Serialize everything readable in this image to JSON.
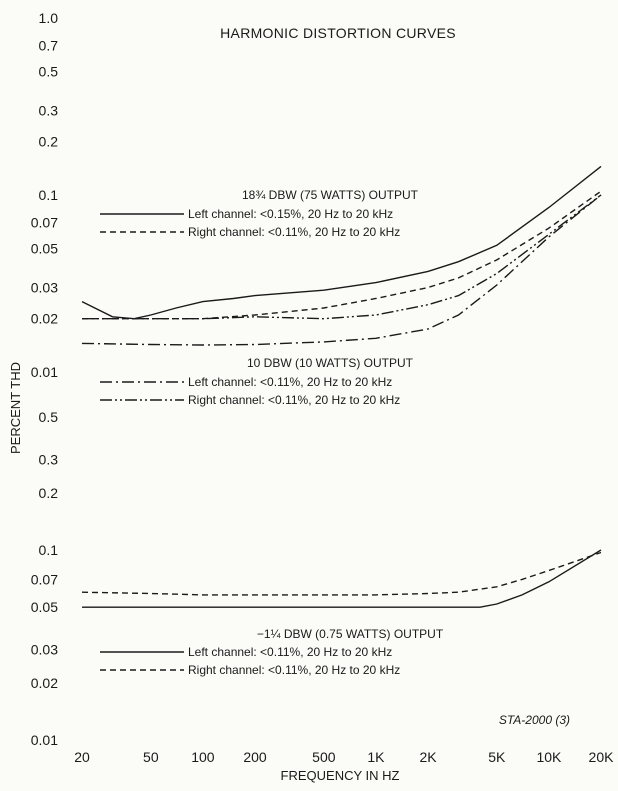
{
  "chart_data": {
    "type": "line",
    "title": "HARMONIC DISTORTION CURVES",
    "xlabel": "FREQUENCY IN HZ",
    "ylabel": "PERCENT THD",
    "xscale": "log",
    "yscale": "log",
    "x_ticks": [
      {
        "value": 20,
        "label": "20"
      },
      {
        "value": 50,
        "label": "50"
      },
      {
        "value": 100,
        "label": "100"
      },
      {
        "value": 200,
        "label": "200"
      },
      {
        "value": 500,
        "label": "500"
      },
      {
        "value": 1000,
        "label": "1K"
      },
      {
        "value": 2000,
        "label": "2K"
      },
      {
        "value": 5000,
        "label": "5K"
      },
      {
        "value": 10000,
        "label": "10K"
      },
      {
        "value": 20000,
        "label": "20K"
      }
    ],
    "xlim": [
      20,
      20000
    ],
    "footnote": "STA-2000 (3)",
    "panels": [
      {
        "ylim": [
          0.01,
          1.0
        ],
        "y_ticks": [
          {
            "value": 1.0,
            "label": "1.0"
          },
          {
            "value": 0.7,
            "label": "0.7"
          },
          {
            "value": 0.5,
            "label": "0.5"
          },
          {
            "value": 0.3,
            "label": "0.3"
          },
          {
            "value": 0.2,
            "label": "0.2"
          },
          {
            "value": 0.1,
            "label": "0.1"
          },
          {
            "value": 0.07,
            "label": "0.07"
          },
          {
            "value": 0.05,
            "label": "0.05"
          },
          {
            "value": 0.03,
            "label": "0.03"
          },
          {
            "value": 0.02,
            "label": "0.02"
          },
          {
            "value": 0.01,
            "label": "0.01"
          }
        ],
        "groups": [
          {
            "heading": "18¾ DBW (75 WATTS) OUTPUT",
            "series": [
              {
                "name": "Left channel: <0.15%, 20 Hz to 20 kHz",
                "style": "solid",
                "x": [
                  20,
                  30,
                  40,
                  50,
                  70,
                  100,
                  150,
                  200,
                  500,
                  1000,
                  2000,
                  3000,
                  5000,
                  10000,
                  20000
                ],
                "y": [
                  0.025,
                  0.0205,
                  0.02,
                  0.021,
                  0.023,
                  0.025,
                  0.026,
                  0.027,
                  0.029,
                  0.032,
                  0.037,
                  0.042,
                  0.052,
                  0.085,
                  0.145
                ]
              },
              {
                "name": "Right channel: <0.11%, 20 Hz to 20 kHz",
                "style": "dashed",
                "x": [
                  20,
                  50,
                  100,
                  200,
                  500,
                  1000,
                  2000,
                  3000,
                  5000,
                  10000,
                  20000
                ],
                "y": [
                  0.02,
                  0.02,
                  0.02,
                  0.021,
                  0.023,
                  0.026,
                  0.03,
                  0.034,
                  0.043,
                  0.065,
                  0.105
                ]
              }
            ]
          },
          {
            "heading": "10 DBW (10 WATTS) OUTPUT",
            "series": [
              {
                "name": "Left channel: <0.11%, 20 Hz to 20 kHz",
                "style": "dashdot",
                "x": [
                  20,
                  50,
                  100,
                  200,
                  500,
                  1000,
                  2000,
                  3000,
                  5000,
                  10000,
                  20000
                ],
                "y": [
                  0.0145,
                  0.0143,
                  0.0142,
                  0.0143,
                  0.0148,
                  0.0155,
                  0.0175,
                  0.021,
                  0.031,
                  0.058,
                  0.1
                ]
              },
              {
                "name": "Right channel: <0.11%, 20 Hz to 20 kHz",
                "style": "dashdotdot",
                "x": [
                  20,
                  50,
                  100,
                  200,
                  500,
                  1000,
                  2000,
                  3000,
                  5000,
                  10000,
                  20000
                ],
                "y": [
                  0.02,
                  0.02,
                  0.02,
                  0.0205,
                  0.02,
                  0.021,
                  0.024,
                  0.027,
                  0.036,
                  0.06,
                  0.1
                ]
              }
            ]
          }
        ]
      },
      {
        "ylim": [
          0.01,
          1.0
        ],
        "y_ticks": [
          {
            "value": 0.5,
            "label": "0.5"
          },
          {
            "value": 0.3,
            "label": "0.3"
          },
          {
            "value": 0.2,
            "label": "0.2"
          },
          {
            "value": 0.1,
            "label": "0.1"
          },
          {
            "value": 0.07,
            "label": "0.07"
          },
          {
            "value": 0.05,
            "label": "0.05"
          },
          {
            "value": 0.03,
            "label": "0.03"
          },
          {
            "value": 0.02,
            "label": "0.02"
          },
          {
            "value": 0.01,
            "label": "0.01"
          }
        ],
        "groups": [
          {
            "heading": "−1¼ DBW (0.75 WATTS) OUTPUT",
            "series": [
              {
                "name": "Left channel: <0.11%, 20 Hz to 20 kHz",
                "style": "solid",
                "x": [
                  20,
                  50,
                  100,
                  200,
                  500,
                  1000,
                  2000,
                  3000,
                  4000,
                  5000,
                  7000,
                  10000,
                  20000
                ],
                "y": [
                  0.05,
                  0.05,
                  0.05,
                  0.05,
                  0.05,
                  0.05,
                  0.05,
                  0.05,
                  0.05,
                  0.052,
                  0.058,
                  0.068,
                  0.1
                ]
              },
              {
                "name": "Right channel: <0.11%, 20 Hz to 20 kHz",
                "style": "dashed",
                "x": [
                  20,
                  50,
                  100,
                  200,
                  500,
                  1000,
                  2000,
                  3000,
                  5000,
                  7000,
                  10000,
                  20000
                ],
                "y": [
                  0.06,
                  0.059,
                  0.058,
                  0.058,
                  0.058,
                  0.058,
                  0.059,
                  0.06,
                  0.064,
                  0.07,
                  0.078,
                  0.097
                ]
              }
            ]
          }
        ]
      }
    ]
  }
}
